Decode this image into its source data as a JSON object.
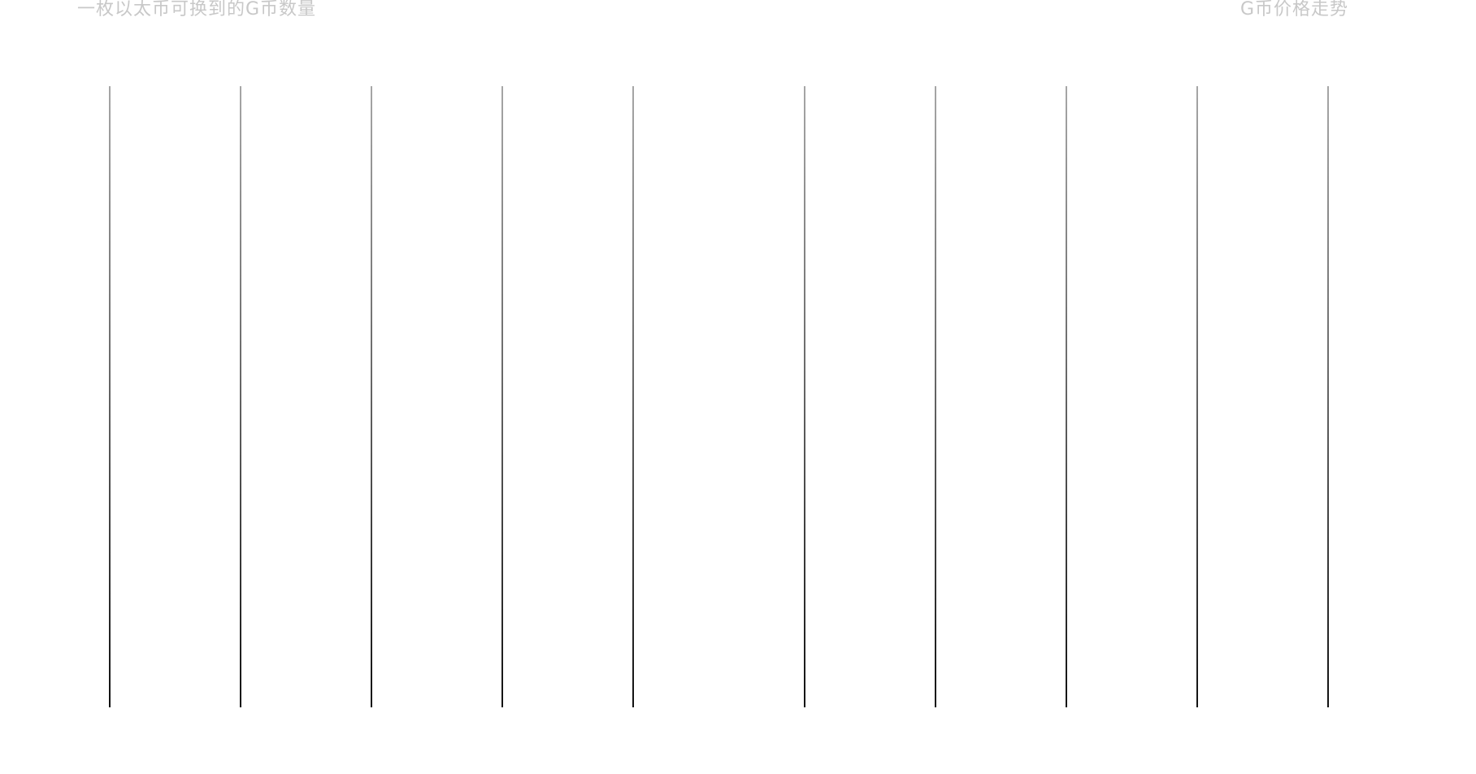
{
  "header": {
    "left_label": "一枚以太币可换到的G币数量",
    "right_label": "G币价格走势"
  },
  "colors": {
    "label_text": "#c8c8c8",
    "line_top": "#a6a6a6",
    "line_bottom": "#111111",
    "background": "#ffffff"
  }
}
